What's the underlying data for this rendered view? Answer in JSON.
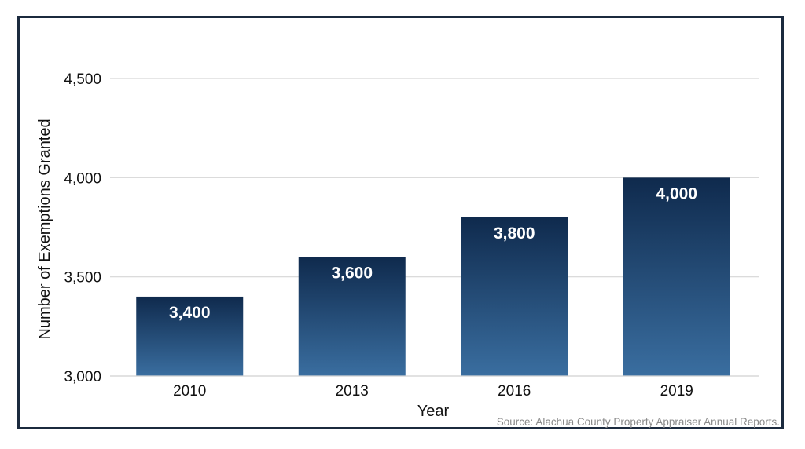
{
  "chart_data": {
    "type": "bar",
    "categories": [
      "2010",
      "2013",
      "2016",
      "2019"
    ],
    "values": [
      3400,
      3600,
      3800,
      4000
    ],
    "data_labels": [
      "3,400",
      "3,600",
      "3,800",
      "4,000"
    ],
    "xlabel": "Year",
    "ylabel": "Number of Exemptions Granted",
    "yticks": [
      3000,
      3500,
      4000,
      4500
    ],
    "ytick_labels": [
      "3,000",
      "3,500",
      "4,000",
      "4,500"
    ],
    "ylim": [
      3000,
      4500
    ],
    "grid": true,
    "legend": "none",
    "bar_gradient": [
      "#0f2a4d",
      "#3a6ea0"
    ],
    "gridline_color": "#d6d6d6",
    "frame_color": "#1b2a3e"
  },
  "source_note": "Source: Alachua County Property Appraiser Annual Reports."
}
